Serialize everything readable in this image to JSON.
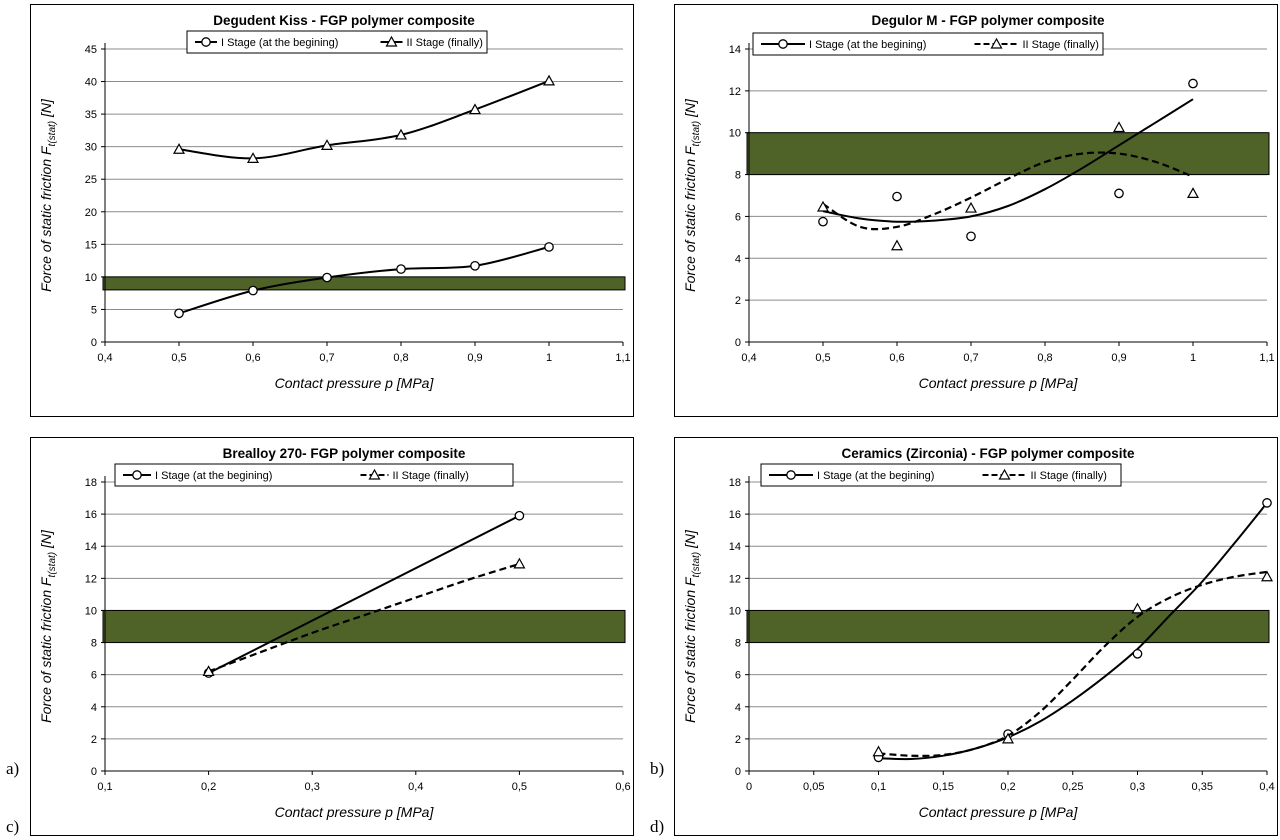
{
  "panel_letters": [
    "a)",
    "b)",
    "c)",
    "d)"
  ],
  "chart_data": [
    {
      "type": "line",
      "title": "Degudent Kiss - FGP polymer composite",
      "xlabel": "Contact pressure p [MPa]",
      "ylabel": "Force of static friction F",
      "ylabel_sub": "t(stat)",
      "ylabel_unit": "[N]",
      "xlim": [
        0.4,
        1.1
      ],
      "ylim": [
        0,
        45
      ],
      "x_ticks": [
        0.4,
        0.5,
        0.6,
        0.7,
        0.8,
        0.9,
        1.0,
        1.1
      ],
      "x_tick_labels": [
        "0,4",
        "0,5",
        "0,6",
        "0,7",
        "0,8",
        "0,9",
        "1",
        "1,1"
      ],
      "y_ticks": [
        0,
        5,
        10,
        15,
        20,
        25,
        30,
        35,
        40,
        45
      ],
      "y_tick_labels": [
        "0",
        "5",
        "10",
        "15",
        "20",
        "25",
        "30",
        "35",
        "40",
        "45"
      ],
      "grid": true,
      "band": [
        8,
        10
      ],
      "band_color": "#4f6228",
      "legend_position": "top-center",
      "series": [
        {
          "name": "I Stage (at the begining)",
          "marker": "circle",
          "line": "solid",
          "curve": "smooth",
          "x": [
            0.5,
            0.6,
            0.7,
            0.8,
            0.9,
            1.0
          ],
          "y": [
            4.4,
            7.9,
            9.9,
            11.2,
            11.7,
            14.6
          ]
        },
        {
          "name": "II Stage (finally)",
          "marker": "triangle",
          "line": "solid",
          "curve": "smooth",
          "x": [
            0.5,
            0.6,
            0.7,
            0.8,
            0.9,
            1.0
          ],
          "y": [
            29.6,
            28.2,
            30.2,
            31.8,
            35.7,
            40.1
          ]
        }
      ]
    },
    {
      "type": "scatter",
      "title": "Degulor M - FGP polymer composite",
      "xlabel": "Contact pressure p [MPa]",
      "ylabel": "Force of static friction F",
      "ylabel_sub": "t(stat)",
      "ylabel_unit": "[N]",
      "xlim": [
        0.4,
        1.1
      ],
      "ylim": [
        0,
        14
      ],
      "x_ticks": [
        0.4,
        0.5,
        0.6,
        0.7,
        0.8,
        0.9,
        1.0,
        1.1
      ],
      "x_tick_labels": [
        "0,4",
        "0,5",
        "0,6",
        "0,7",
        "0,8",
        "0,9",
        "1",
        "1,1"
      ],
      "y_ticks": [
        0,
        2,
        4,
        6,
        8,
        10,
        12,
        14
      ],
      "y_tick_labels": [
        "0",
        "2",
        "4",
        "6",
        "8",
        "10",
        "12",
        "14"
      ],
      "grid": true,
      "band": [
        8,
        10
      ],
      "band_color": "#4f6228",
      "legend_position": "top-left",
      "series": [
        {
          "name": "I Stage (at the begining)",
          "marker": "circle",
          "line": "solid",
          "x": [
            0.5,
            0.6,
            0.7,
            0.9,
            1.0
          ],
          "y": [
            5.75,
            6.95,
            5.05,
            7.1,
            12.35
          ],
          "trend_x": [
            0.5,
            0.55,
            0.6,
            0.65,
            0.7,
            0.75,
            0.8,
            0.85,
            0.9,
            0.95,
            1.0
          ],
          "trend_y": [
            6.25,
            5.9,
            5.75,
            5.8,
            6.0,
            6.5,
            7.3,
            8.3,
            9.4,
            10.5,
            11.6
          ]
        },
        {
          "name": "II Stage (finally)",
          "marker": "triangle",
          "line": "dashed",
          "x": [
            0.5,
            0.6,
            0.7,
            0.9,
            1.0
          ],
          "y": [
            6.45,
            4.6,
            6.4,
            10.25,
            7.1
          ],
          "trend_x": [
            0.5,
            0.55,
            0.6,
            0.65,
            0.7,
            0.75,
            0.8,
            0.85,
            0.9,
            0.95,
            1.0
          ],
          "trend_y": [
            6.6,
            5.5,
            5.5,
            6.1,
            6.9,
            7.8,
            8.6,
            9.0,
            9.0,
            8.6,
            7.9
          ]
        }
      ]
    },
    {
      "type": "line",
      "title": "Brealloy 270- FGP polymer composite",
      "xlabel": "Contact pressure p [MPa]",
      "ylabel": "Force of static friction F",
      "ylabel_sub": "t(stat)",
      "ylabel_unit": "[N]",
      "xlim": [
        0.1,
        0.6
      ],
      "ylim": [
        0,
        18
      ],
      "x_ticks": [
        0.1,
        0.2,
        0.3,
        0.4,
        0.5,
        0.6
      ],
      "x_tick_labels": [
        "0,1",
        "0,2",
        "0,3",
        "0,4",
        "0,5",
        "0,6"
      ],
      "y_ticks": [
        0,
        2,
        4,
        6,
        8,
        10,
        12,
        14,
        16,
        18
      ],
      "y_tick_labels": [
        "0",
        "2",
        "4",
        "6",
        "8",
        "10",
        "12",
        "14",
        "16",
        "18"
      ],
      "grid": true,
      "band": [
        8,
        10
      ],
      "band_color": "#4f6228",
      "legend_position": "top",
      "series": [
        {
          "name": "I Stage (at the begining)",
          "marker": "circle",
          "line": "solid",
          "x": [
            0.2,
            0.5
          ],
          "y": [
            6.1,
            15.9
          ]
        },
        {
          "name": "II Stage (finally)",
          "marker": "triangle",
          "line": "dashed",
          "x": [
            0.2,
            0.5
          ],
          "y": [
            6.2,
            12.9
          ],
          "trend_x": [
            0.2,
            0.25,
            0.3,
            0.35,
            0.4,
            0.45,
            0.5
          ],
          "trend_y": [
            6.2,
            7.4,
            8.6,
            9.7,
            10.8,
            11.9,
            12.9
          ]
        }
      ]
    },
    {
      "type": "scatter",
      "title": "Ceramics (Zirconia) - FGP polymer composite",
      "xlabel": "Contact pressure p [MPa]",
      "ylabel": "Force of static friction F",
      "ylabel_sub": "t(stat)",
      "ylabel_unit": "[N]",
      "xlim": [
        0,
        0.4
      ],
      "ylim": [
        0,
        18
      ],
      "x_ticks": [
        0,
        0.05,
        0.1,
        0.15,
        0.2,
        0.25,
        0.3,
        0.35,
        0.4
      ],
      "x_tick_labels": [
        "0",
        "0,05",
        "0,1",
        "0,15",
        "0,2",
        "0,25",
        "0,3",
        "0,35",
        "0,4"
      ],
      "y_ticks": [
        0,
        2,
        4,
        6,
        8,
        10,
        12,
        14,
        16,
        18
      ],
      "y_tick_labels": [
        "0",
        "2",
        "4",
        "6",
        "8",
        "10",
        "12",
        "14",
        "16",
        "18"
      ],
      "grid": true,
      "band": [
        8,
        10
      ],
      "band_color": "#4f6228",
      "legend_position": "top-left",
      "series": [
        {
          "name": "I Stage (at the begining)",
          "marker": "circle",
          "line": "solid",
          "x": [
            0.1,
            0.2,
            0.3,
            0.4
          ],
          "y": [
            0.85,
            2.3,
            7.3,
            16.7
          ],
          "trend_x": [
            0.1,
            0.125,
            0.15,
            0.175,
            0.2,
            0.225,
            0.25,
            0.275,
            0.3,
            0.325,
            0.35,
            0.375,
            0.4
          ],
          "trend_y": [
            0.8,
            0.75,
            0.95,
            1.4,
            2.1,
            3.1,
            4.4,
            5.9,
            7.6,
            9.7,
            11.8,
            14.2,
            16.7
          ]
        },
        {
          "name": "II Stage (finally)",
          "marker": "triangle",
          "line": "dashed",
          "x": [
            0.1,
            0.2,
            0.3,
            0.4
          ],
          "y": [
            1.2,
            2.0,
            10.1,
            12.1
          ],
          "trend_x": [
            0.1,
            0.125,
            0.15,
            0.175,
            0.2,
            0.225,
            0.25,
            0.275,
            0.3,
            0.325,
            0.35,
            0.375,
            0.4
          ],
          "trend_y": [
            1.1,
            0.95,
            1.0,
            1.4,
            2.2,
            3.7,
            5.7,
            7.8,
            9.6,
            10.8,
            11.6,
            12.1,
            12.4
          ]
        }
      ]
    }
  ]
}
